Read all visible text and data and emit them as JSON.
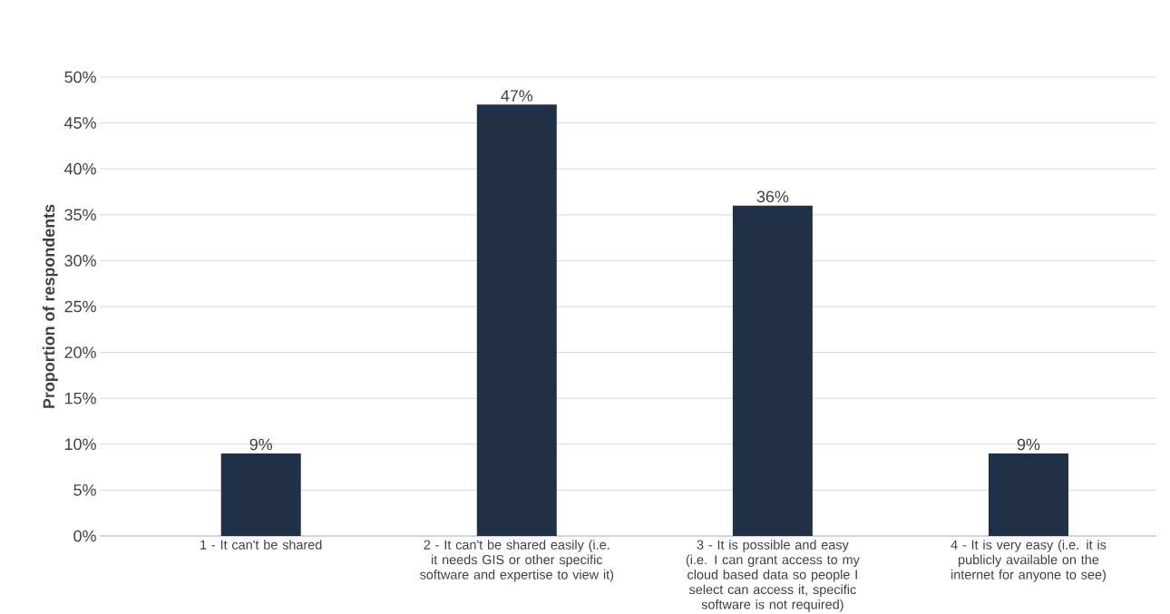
{
  "chart_data": {
    "type": "bar",
    "ylabel": "**Proportion of respondents**",
    "categories": [
      "1 - It can't be shared",
      "2 - It can't be shared easily (i.e. it needs GIS or other specific software and expertise to view it)",
      "3 - It is possible and easy (i.e. I can grant access to my cloud based data so people I select can access it, specific software is not required)",
      "4 - It is very easy (i.e. it is publicly available on the internet for anyone to see)"
    ],
    "values": [
      9,
      47,
      36,
      9
    ],
    "color": "#203147",
    "value_labels": [
      "9%",
      "47%",
      "36%",
      "9%"
    ],
    "ylim": [
      0,
      50
    ],
    "yticks": [
      {
        "value": 0,
        "label": "0%"
      },
      {
        "value": 5,
        "label": "5%"
      },
      {
        "value": 10,
        "label": "10%"
      },
      {
        "value": 15,
        "label": "15%"
      },
      {
        "value": 20,
        "label": "20%"
      },
      {
        "value": 25,
        "label": "25%"
      },
      {
        "value": 30,
        "label": "30%"
      },
      {
        "value": 35,
        "label": "35%"
      },
      {
        "value": 40,
        "label": "40%"
      },
      {
        "value": 45,
        "label": "45%"
      },
      {
        "value": 50,
        "label": "50%"
      }
    ],
    "grid": "y"
  }
}
